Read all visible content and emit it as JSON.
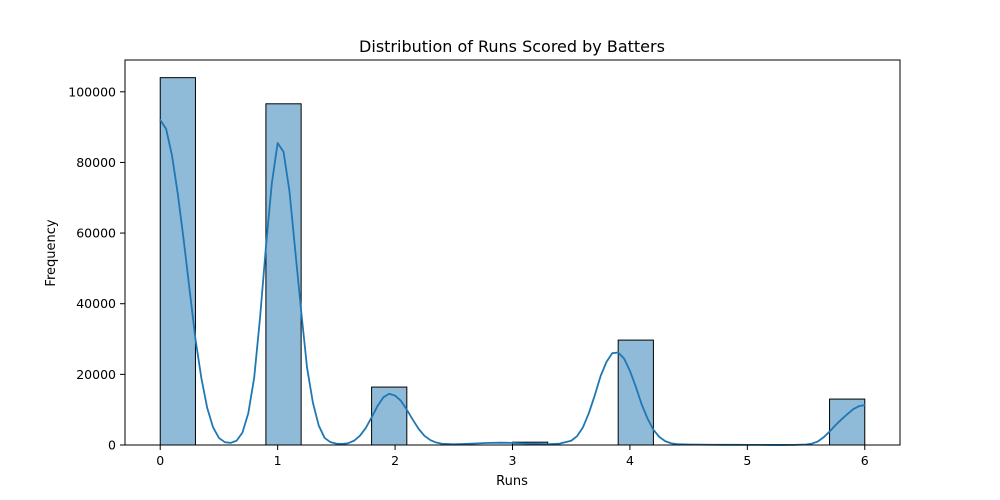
{
  "chart_data": {
    "type": "bar",
    "title": "Distribution of Runs Scored by Batters",
    "xlabel": "Runs",
    "ylabel": "Frequency",
    "xlim": [
      -0.3,
      6.3
    ],
    "ylim": [
      0,
      109000
    ],
    "xticks": [
      0,
      1,
      2,
      3,
      4,
      5,
      6
    ],
    "xtick_labels": [
      "0",
      "1",
      "2",
      "3",
      "4",
      "5",
      "6"
    ],
    "yticks": [
      0,
      20000,
      40000,
      60000,
      80000,
      100000
    ],
    "ytick_labels": [
      "0",
      "20000",
      "40000",
      "60000",
      "80000",
      "100000"
    ],
    "bars": [
      {
        "x0": 0.0,
        "x1": 0.3,
        "value": 104000
      },
      {
        "x0": 0.9,
        "x1": 1.2,
        "value": 96600
      },
      {
        "x0": 1.8,
        "x1": 2.1,
        "value": 16400
      },
      {
        "x0": 3.0,
        "x1": 3.3,
        "value": 800
      },
      {
        "x0": 3.9,
        "x1": 4.2,
        "value": 29700
      },
      {
        "x0": 5.7,
        "x1": 6.0,
        "value": 13000
      }
    ],
    "kde": {
      "x": [
        0.0,
        0.05,
        0.1,
        0.15,
        0.2,
        0.25,
        0.3,
        0.35,
        0.4,
        0.45,
        0.5,
        0.55,
        0.6,
        0.65,
        0.7,
        0.75,
        0.8,
        0.85,
        0.9,
        0.95,
        1.0,
        1.05,
        1.1,
        1.15,
        1.2,
        1.25,
        1.3,
        1.35,
        1.4,
        1.45,
        1.5,
        1.55,
        1.6,
        1.65,
        1.7,
        1.75,
        1.8,
        1.85,
        1.9,
        1.95,
        2.0,
        2.05,
        2.1,
        2.15,
        2.2,
        2.25,
        2.3,
        2.35,
        2.4,
        2.5,
        2.6,
        2.7,
        2.8,
        2.9,
        3.0,
        3.1,
        3.2,
        3.3,
        3.4,
        3.5,
        3.55,
        3.6,
        3.65,
        3.7,
        3.75,
        3.8,
        3.85,
        3.9,
        3.95,
        4.0,
        4.05,
        4.1,
        4.15,
        4.2,
        4.25,
        4.3,
        4.35,
        4.4,
        4.5,
        4.6,
        4.7,
        4.8,
        4.9,
        5.0,
        5.1,
        5.2,
        5.3,
        5.4,
        5.5,
        5.55,
        5.6,
        5.65,
        5.7,
        5.75,
        5.8,
        5.85,
        5.9,
        5.95,
        6.0
      ],
      "y": [
        92000,
        89500,
        82000,
        71000,
        58000,
        44000,
        30000,
        19000,
        10500,
        5000,
        2000,
        800,
        600,
        1200,
        3500,
        9000,
        19000,
        36000,
        56000,
        74000,
        85500,
        83000,
        72000,
        55000,
        38000,
        22000,
        12000,
        5500,
        2000,
        800,
        400,
        300,
        500,
        1200,
        2600,
        4800,
        7800,
        11000,
        13500,
        14500,
        14000,
        12500,
        10000,
        7200,
        4600,
        2600,
        1400,
        700,
        350,
        200,
        300,
        450,
        600,
        650,
        600,
        450,
        300,
        200,
        400,
        1200,
        2500,
        5000,
        9000,
        14000,
        19500,
        23500,
        26000,
        26200,
        24500,
        21000,
        16500,
        11500,
        7500,
        4300,
        2300,
        1100,
        500,
        250,
        150,
        100,
        80,
        60,
        50,
        40,
        30,
        20,
        20,
        30,
        150,
        400,
        1000,
        2200,
        3800,
        5600,
        7200,
        8700,
        10100,
        11000,
        11300
      ]
    },
    "colors": {
      "bar_fill": "#8fbbd9",
      "bar_edge": "#000000",
      "kde_line": "#1f77b4",
      "axes": "#000000",
      "background": "#ffffff"
    },
    "grid": false,
    "legend": "none"
  }
}
